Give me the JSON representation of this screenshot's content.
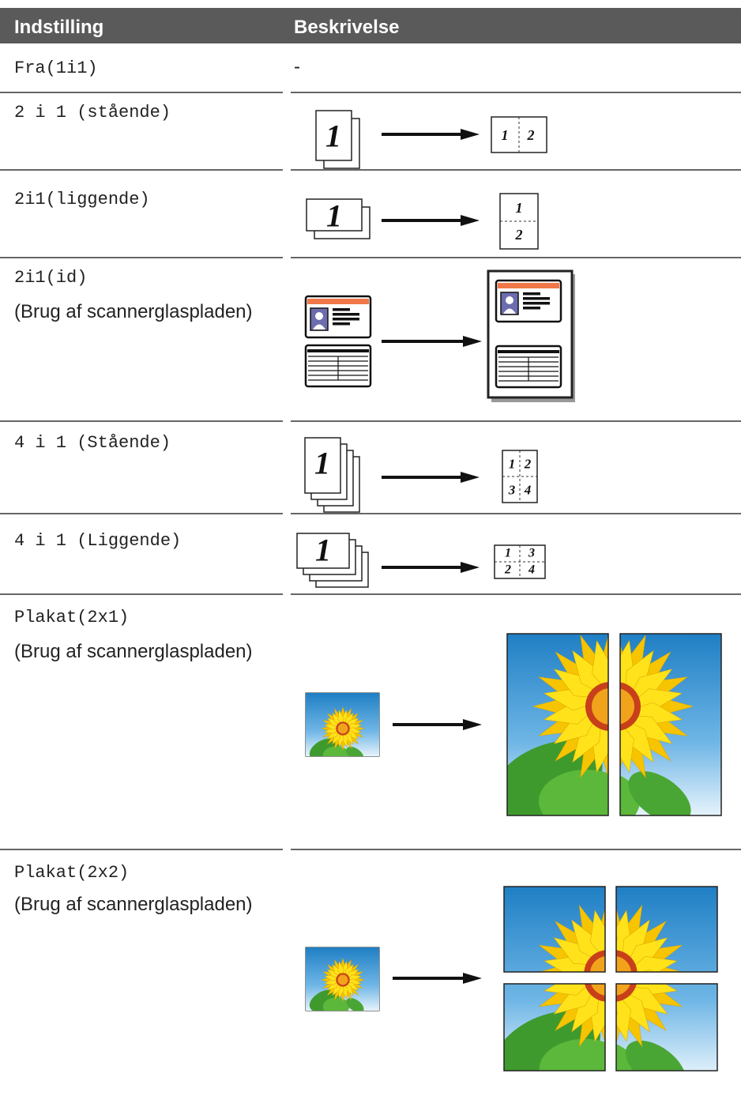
{
  "header": {
    "setting": "Indstilling",
    "description": "Beskrivelse"
  },
  "rows": [
    {
      "setting": "Fra(1i1)",
      "description": "-"
    },
    {
      "setting": "2 i 1 (stående)",
      "illustration": {
        "source": "1",
        "result": [
          "1",
          "2"
        ]
      }
    },
    {
      "setting": "2i1(liggende)",
      "illustration": {
        "source": "1",
        "result": [
          "1",
          "2"
        ]
      }
    },
    {
      "setting": "2i1(id)",
      "note": "(Brug af scannerglaspladen)"
    },
    {
      "setting": "4 i 1 (Stående)",
      "illustration": {
        "source": "1",
        "result": [
          "1",
          "2",
          "3",
          "4"
        ]
      }
    },
    {
      "setting": "4 i 1 (Liggende)",
      "illustration": {
        "source": "1",
        "result": [
          "1",
          "3",
          "2",
          "4"
        ]
      }
    },
    {
      "setting": "Plakat(2x1)",
      "note": "(Brug af scannerglaspladen)"
    },
    {
      "setting": "Plakat(2x2)",
      "note": "(Brug af scannerglaspladen)"
    }
  ]
}
